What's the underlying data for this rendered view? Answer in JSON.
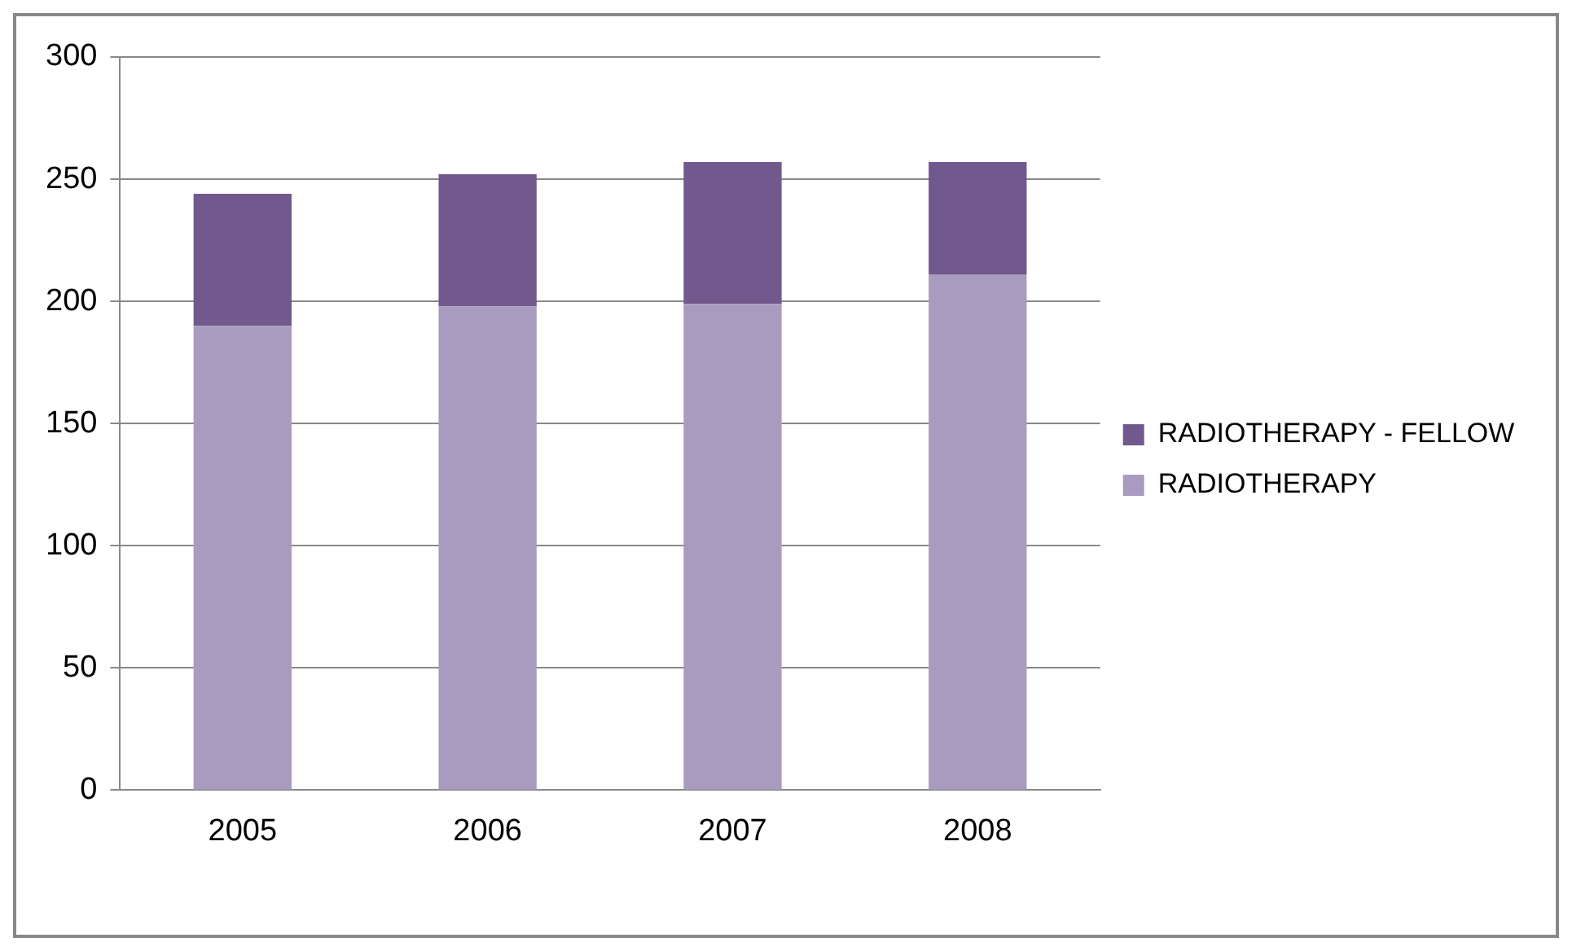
{
  "chart_data": {
    "type": "bar",
    "stacked": true,
    "categories": [
      "2005",
      "2006",
      "2007",
      "2008"
    ],
    "series": [
      {
        "name": "RADIOTHERAPY",
        "color": "#a99bbf",
        "values": [
          190,
          198,
          199,
          211
        ]
      },
      {
        "name": "RADIOTHERAPY - FELLOW",
        "color": "#71598d",
        "values": [
          54,
          54,
          58,
          46
        ]
      }
    ],
    "ylim": [
      0,
      300
    ],
    "yticks": [
      0,
      50,
      100,
      150,
      200,
      250,
      300
    ],
    "grid": "y",
    "legend": "right"
  }
}
